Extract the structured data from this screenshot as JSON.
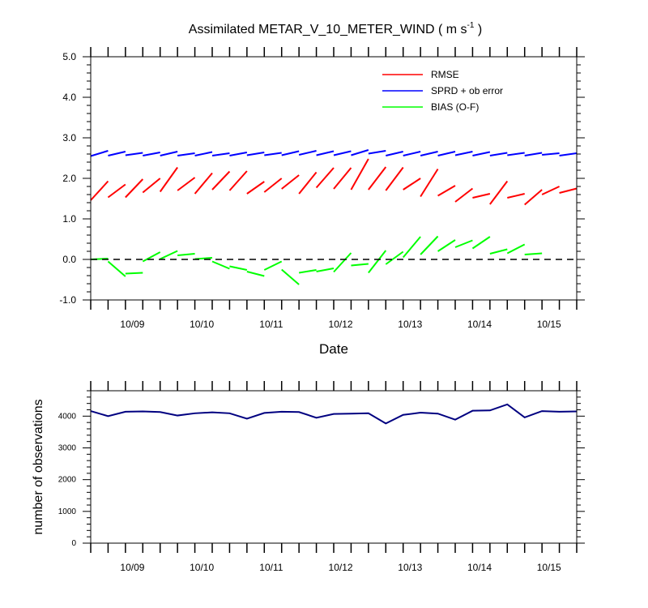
{
  "chart_data": [
    {
      "type": "line",
      "title": "Assimilated METAR_V_10_METER_WIND",
      "title_units": "( m s",
      "title_units_sup": "-1",
      "title_units_close": " )",
      "xlabel": "Date",
      "ylabel": "",
      "ylim": [
        -1.0,
        5.0
      ],
      "yticks": [
        "-1.0",
        "0.0",
        "1.0",
        "2.0",
        "3.0",
        "4.0",
        "5.0"
      ],
      "xlim": [
        0,
        7
      ],
      "xtick_labels": [
        "10/09",
        "10/10",
        "10/11",
        "10/12",
        "10/13",
        "10/14",
        "10/15"
      ],
      "reference_line": {
        "y": 0.0,
        "style": "dashed"
      },
      "legend_position": "top-right",
      "series": [
        {
          "name": "RMSE",
          "color": "#ff0000",
          "segments": [
            [
              [
                0.0,
                1.46
              ],
              [
                0.25,
                1.93
              ]
            ],
            [
              [
                0.25,
                1.53
              ],
              [
                0.5,
                1.85
              ]
            ],
            [
              [
                0.5,
                1.53
              ],
              [
                0.75,
                1.98
              ]
            ],
            [
              [
                0.75,
                1.65
              ],
              [
                1.0,
                2.0
              ]
            ],
            [
              [
                1.0,
                1.67
              ],
              [
                1.25,
                2.27
              ]
            ],
            [
              [
                1.25,
                1.7
              ],
              [
                1.5,
                2.02
              ]
            ],
            [
              [
                1.5,
                1.62
              ],
              [
                1.75,
                2.13
              ]
            ],
            [
              [
                1.75,
                1.72
              ],
              [
                2.0,
                2.17
              ]
            ],
            [
              [
                2.0,
                1.7
              ],
              [
                2.25,
                2.18
              ]
            ],
            [
              [
                2.25,
                1.62
              ],
              [
                2.5,
                1.92
              ]
            ],
            [
              [
                2.5,
                1.66
              ],
              [
                2.75,
                2.0
              ]
            ],
            [
              [
                2.75,
                1.74
              ],
              [
                3.0,
                2.08
              ]
            ],
            [
              [
                3.0,
                1.62
              ],
              [
                3.25,
                2.15
              ]
            ],
            [
              [
                3.25,
                1.77
              ],
              [
                3.5,
                2.26
              ]
            ],
            [
              [
                3.5,
                1.74
              ],
              [
                3.75,
                2.26
              ]
            ],
            [
              [
                3.75,
                1.72
              ],
              [
                4.0,
                2.48
              ]
            ],
            [
              [
                4.0,
                1.72
              ],
              [
                4.25,
                2.28
              ]
            ],
            [
              [
                4.25,
                1.7
              ],
              [
                4.5,
                2.27
              ]
            ],
            [
              [
                4.5,
                1.72
              ],
              [
                4.75,
                2.0
              ]
            ],
            [
              [
                4.75,
                1.55
              ],
              [
                5.0,
                2.23
              ]
            ],
            [
              [
                5.0,
                1.57
              ],
              [
                5.25,
                1.82
              ]
            ],
            [
              [
                5.25,
                1.42
              ],
              [
                5.5,
                1.75
              ]
            ],
            [
              [
                5.5,
                1.52
              ],
              [
                5.75,
                1.62
              ]
            ],
            [
              [
                5.75,
                1.36
              ],
              [
                6.0,
                1.93
              ]
            ],
            [
              [
                6.0,
                1.52
              ],
              [
                6.25,
                1.62
              ]
            ],
            [
              [
                6.25,
                1.35
              ],
              [
                6.5,
                1.72
              ]
            ],
            [
              [
                6.5,
                1.6
              ],
              [
                6.75,
                1.8
              ]
            ],
            [
              [
                6.75,
                1.64
              ],
              [
                7.0,
                1.75
              ]
            ]
          ]
        },
        {
          "name": "SPRD + ob error",
          "color": "#0000ff",
          "segments": [
            [
              [
                0.0,
                2.55
              ],
              [
                0.25,
                2.68
              ]
            ],
            [
              [
                0.25,
                2.56
              ],
              [
                0.5,
                2.66
              ]
            ],
            [
              [
                0.5,
                2.57
              ],
              [
                0.75,
                2.63
              ]
            ],
            [
              [
                0.75,
                2.56
              ],
              [
                1.0,
                2.64
              ]
            ],
            [
              [
                1.0,
                2.56
              ],
              [
                1.25,
                2.66
              ]
            ],
            [
              [
                1.25,
                2.56
              ],
              [
                1.5,
                2.62
              ]
            ],
            [
              [
                1.5,
                2.56
              ],
              [
                1.75,
                2.65
              ]
            ],
            [
              [
                1.75,
                2.56
              ],
              [
                2.0,
                2.62
              ]
            ],
            [
              [
                2.0,
                2.56
              ],
              [
                2.25,
                2.64
              ]
            ],
            [
              [
                2.25,
                2.57
              ],
              [
                2.5,
                2.64
              ]
            ],
            [
              [
                2.5,
                2.57
              ],
              [
                2.75,
                2.63
              ]
            ],
            [
              [
                2.75,
                2.57
              ],
              [
                3.0,
                2.67
              ]
            ],
            [
              [
                3.0,
                2.58
              ],
              [
                3.25,
                2.68
              ]
            ],
            [
              [
                3.25,
                2.57
              ],
              [
                3.5,
                2.67
              ]
            ],
            [
              [
                3.5,
                2.57
              ],
              [
                3.75,
                2.67
              ]
            ],
            [
              [
                3.75,
                2.57
              ],
              [
                4.0,
                2.7
              ]
            ],
            [
              [
                4.0,
                2.61
              ],
              [
                4.25,
                2.68
              ]
            ],
            [
              [
                4.25,
                2.56
              ],
              [
                4.5,
                2.66
              ]
            ],
            [
              [
                4.5,
                2.56
              ],
              [
                4.75,
                2.66
              ]
            ],
            [
              [
                4.75,
                2.56
              ],
              [
                5.0,
                2.66
              ]
            ],
            [
              [
                5.0,
                2.56
              ],
              [
                5.25,
                2.66
              ]
            ],
            [
              [
                5.25,
                2.57
              ],
              [
                5.5,
                2.66
              ]
            ],
            [
              [
                5.5,
                2.56
              ],
              [
                5.75,
                2.65
              ]
            ],
            [
              [
                5.75,
                2.56
              ],
              [
                6.0,
                2.63
              ]
            ],
            [
              [
                6.0,
                2.57
              ],
              [
                6.25,
                2.63
              ]
            ],
            [
              [
                6.25,
                2.56
              ],
              [
                6.5,
                2.63
              ]
            ],
            [
              [
                6.5,
                2.58
              ],
              [
                6.75,
                2.62
              ]
            ],
            [
              [
                6.75,
                2.56
              ],
              [
                7.0,
                2.62
              ]
            ]
          ]
        },
        {
          "name": "BIAS (O-F)",
          "color": "#00ff00",
          "segments": [
            [
              [
                0.0,
                0.0
              ],
              [
                0.25,
                0.02
              ]
            ],
            [
              [
                0.25,
                -0.05
              ],
              [
                0.5,
                -0.42
              ]
            ],
            [
              [
                0.5,
                -0.35
              ],
              [
                0.75,
                -0.33
              ]
            ],
            [
              [
                0.75,
                -0.05
              ],
              [
                1.0,
                0.18
              ]
            ],
            [
              [
                1.0,
                0.01
              ],
              [
                1.25,
                0.21
              ]
            ],
            [
              [
                1.25,
                0.1
              ],
              [
                1.5,
                0.14
              ]
            ],
            [
              [
                1.5,
                0.01
              ],
              [
                1.75,
                0.04
              ]
            ],
            [
              [
                1.75,
                -0.05
              ],
              [
                2.0,
                -0.23
              ]
            ],
            [
              [
                2.0,
                -0.17
              ],
              [
                2.25,
                -0.26
              ]
            ],
            [
              [
                2.25,
                -0.3
              ],
              [
                2.5,
                -0.41
              ]
            ],
            [
              [
                2.5,
                -0.26
              ],
              [
                2.75,
                -0.05
              ]
            ],
            [
              [
                2.75,
                -0.25
              ],
              [
                3.0,
                -0.62
              ]
            ],
            [
              [
                3.0,
                -0.33
              ],
              [
                3.25,
                -0.26
              ]
            ],
            [
              [
                3.25,
                -0.3
              ],
              [
                3.5,
                -0.22
              ]
            ],
            [
              [
                3.5,
                -0.31
              ],
              [
                3.75,
                0.16
              ]
            ],
            [
              [
                3.75,
                -0.15
              ],
              [
                4.0,
                -0.11
              ]
            ],
            [
              [
                4.0,
                -0.33
              ],
              [
                4.25,
                0.22
              ]
            ],
            [
              [
                4.25,
                -0.12
              ],
              [
                4.5,
                0.19
              ]
            ],
            [
              [
                4.5,
                0.05
              ],
              [
                4.75,
                0.56
              ]
            ],
            [
              [
                4.75,
                0.12
              ],
              [
                5.0,
                0.57
              ]
            ],
            [
              [
                5.0,
                0.2
              ],
              [
                5.25,
                0.48
              ]
            ],
            [
              [
                5.25,
                0.3
              ],
              [
                5.5,
                0.47
              ]
            ],
            [
              [
                5.5,
                0.27
              ],
              [
                5.75,
                0.56
              ]
            ],
            [
              [
                5.75,
                0.14
              ],
              [
                6.0,
                0.25
              ]
            ],
            [
              [
                6.0,
                0.15
              ],
              [
                6.25,
                0.37
              ]
            ],
            [
              [
                6.25,
                0.12
              ],
              [
                6.5,
                0.15
              ]
            ]
          ]
        }
      ]
    },
    {
      "type": "line",
      "title": "",
      "xlabel": "",
      "ylabel": "number of observations",
      "ylim": [
        0,
        4800
      ],
      "yticks": [
        "0",
        "1000",
        "2000",
        "3000",
        "4000"
      ],
      "xlim": [
        0,
        7
      ],
      "xtick_labels": [
        "10/09",
        "10/10",
        "10/11",
        "10/12",
        "10/13",
        "10/14",
        "10/15"
      ],
      "series": [
        {
          "color": "#000080",
          "x": [
            0,
            0.25,
            0.5,
            0.75,
            1.0,
            1.25,
            1.5,
            1.75,
            2.0,
            2.25,
            2.5,
            2.75,
            3.0,
            3.25,
            3.5,
            3.75,
            4.0,
            4.25,
            4.5,
            4.75,
            5.0,
            5.25,
            5.5,
            5.75,
            6.0,
            6.25,
            6.5,
            6.75,
            7.0
          ],
          "y": [
            4160,
            4000,
            4140,
            4150,
            4130,
            4020,
            4090,
            4120,
            4090,
            3920,
            4100,
            4140,
            4130,
            3950,
            4070,
            4080,
            4090,
            3770,
            4040,
            4110,
            4080,
            3890,
            4170,
            4180,
            4370,
            3960,
            4160,
            4140,
            4150
          ]
        }
      ]
    }
  ]
}
